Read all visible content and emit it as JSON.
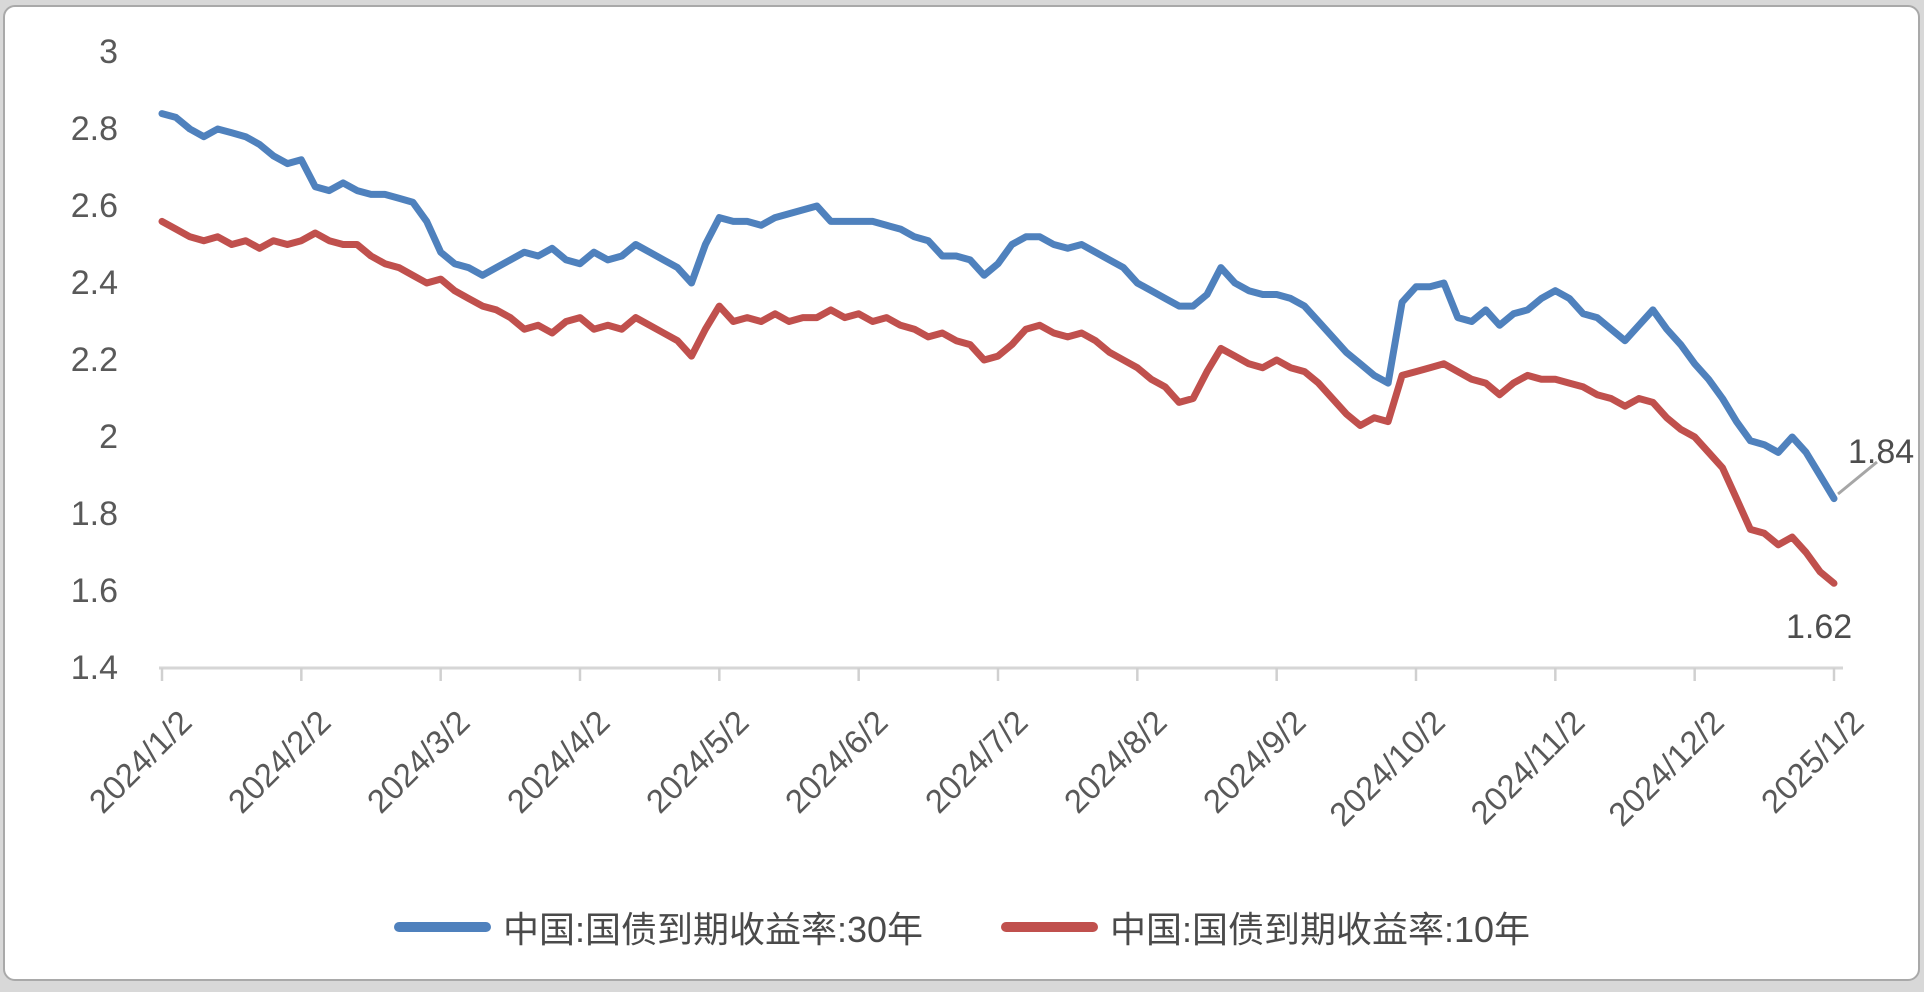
{
  "chart_data": {
    "type": "line",
    "title": "",
    "x_tick_labels": [
      "2024/1/2",
      "2024/2/2",
      "2024/3/2",
      "2024/4/2",
      "2024/5/2",
      "2024/6/2",
      "2024/7/2",
      "2024/8/2",
      "2024/9/2",
      "2024/10/2",
      "2024/11/2",
      "2024/12/2",
      "2025/1/2"
    ],
    "y_tick_labels": [
      "3",
      "2.8",
      "2.6",
      "2.4",
      "2.2",
      "2",
      "1.8",
      "1.6",
      "1.4"
    ],
    "y_ticks": [
      3,
      2.8,
      2.6,
      2.4,
      2.2,
      2,
      1.8,
      1.6,
      1.4
    ],
    "ylim": [
      1.4,
      3.0
    ],
    "grid": false,
    "legend_position": "bottom",
    "axis_color": "#d6d6d6",
    "tick_color": "#d0d0d0",
    "text_color": "#595959",
    "leader_line_color": "#a6a6a6",
    "series": [
      {
        "name": "中国:国债到期收益率:30年",
        "color": "#4F81BD",
        "end_label": "1.84",
        "end_value": 1.84,
        "start_value": 2.84,
        "values": [
          2.84,
          2.83,
          2.8,
          2.78,
          2.8,
          2.79,
          2.78,
          2.76,
          2.73,
          2.71,
          2.72,
          2.65,
          2.64,
          2.66,
          2.64,
          2.63,
          2.63,
          2.62,
          2.61,
          2.56,
          2.48,
          2.45,
          2.44,
          2.42,
          2.44,
          2.46,
          2.48,
          2.47,
          2.49,
          2.46,
          2.45,
          2.48,
          2.46,
          2.47,
          2.5,
          2.48,
          2.46,
          2.44,
          2.4,
          2.5,
          2.57,
          2.56,
          2.56,
          2.55,
          2.57,
          2.58,
          2.59,
          2.6,
          2.56,
          2.56,
          2.56,
          2.56,
          2.55,
          2.54,
          2.52,
          2.51,
          2.47,
          2.47,
          2.46,
          2.42,
          2.45,
          2.5,
          2.52,
          2.52,
          2.5,
          2.49,
          2.5,
          2.48,
          2.46,
          2.44,
          2.4,
          2.38,
          2.36,
          2.34,
          2.34,
          2.37,
          2.44,
          2.4,
          2.38,
          2.37,
          2.37,
          2.36,
          2.34,
          2.3,
          2.26,
          2.22,
          2.19,
          2.16,
          2.14,
          2.35,
          2.39,
          2.39,
          2.4,
          2.31,
          2.3,
          2.33,
          2.29,
          2.32,
          2.33,
          2.36,
          2.38,
          2.36,
          2.32,
          2.31,
          2.28,
          2.25,
          2.29,
          2.33,
          2.28,
          2.24,
          2.19,
          2.15,
          2.1,
          2.04,
          1.99,
          1.98,
          1.96,
          2.0,
          1.96,
          1.9,
          1.84
        ]
      },
      {
        "name": "中国:国债到期收益率:10年",
        "color": "#C0504D",
        "end_label": "1.62",
        "end_value": 1.62,
        "start_value": 2.56,
        "values": [
          2.56,
          2.54,
          2.52,
          2.51,
          2.52,
          2.5,
          2.51,
          2.49,
          2.51,
          2.5,
          2.51,
          2.53,
          2.51,
          2.5,
          2.5,
          2.47,
          2.45,
          2.44,
          2.42,
          2.4,
          2.41,
          2.38,
          2.36,
          2.34,
          2.33,
          2.31,
          2.28,
          2.29,
          2.27,
          2.3,
          2.31,
          2.28,
          2.29,
          2.28,
          2.31,
          2.29,
          2.27,
          2.25,
          2.21,
          2.28,
          2.34,
          2.3,
          2.31,
          2.3,
          2.32,
          2.3,
          2.31,
          2.31,
          2.33,
          2.31,
          2.32,
          2.3,
          2.31,
          2.29,
          2.28,
          2.26,
          2.27,
          2.25,
          2.24,
          2.2,
          2.21,
          2.24,
          2.28,
          2.29,
          2.27,
          2.26,
          2.27,
          2.25,
          2.22,
          2.2,
          2.18,
          2.15,
          2.13,
          2.09,
          2.1,
          2.17,
          2.23,
          2.21,
          2.19,
          2.18,
          2.2,
          2.18,
          2.17,
          2.14,
          2.1,
          2.06,
          2.03,
          2.05,
          2.04,
          2.16,
          2.17,
          2.18,
          2.19,
          2.17,
          2.15,
          2.14,
          2.11,
          2.14,
          2.16,
          2.15,
          2.15,
          2.14,
          2.13,
          2.11,
          2.1,
          2.08,
          2.1,
          2.09,
          2.05,
          2.02,
          2.0,
          1.96,
          1.92,
          1.84,
          1.76,
          1.75,
          1.72,
          1.74,
          1.7,
          1.65,
          1.62
        ]
      }
    ]
  },
  "legend": {
    "item_30y": "中国:国债到期收益率:30年",
    "item_10y": "中国:国债到期收益率:10年"
  }
}
